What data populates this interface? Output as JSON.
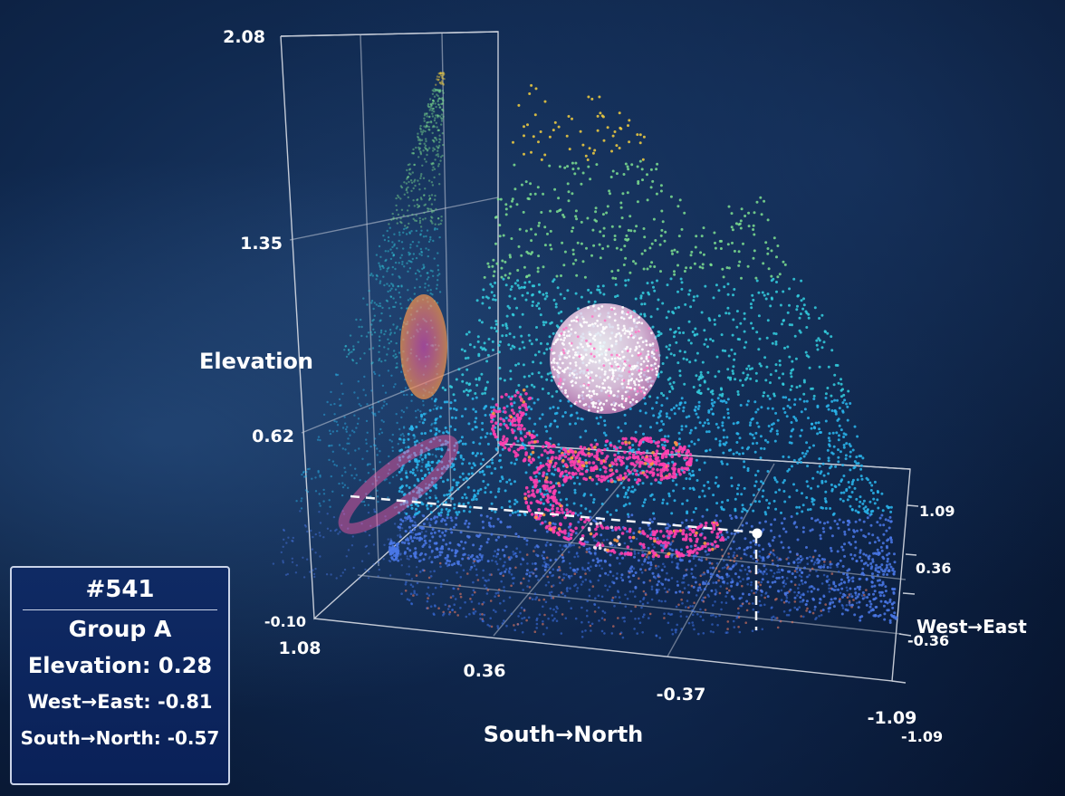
{
  "chart_data": {
    "type": "scatter3d",
    "axes": {
      "z": {
        "label": "Elevation",
        "ticks": [
          "2.08",
          "1.35",
          "0.62",
          "-0.10"
        ],
        "range": [
          -0.1,
          2.08
        ]
      },
      "y": {
        "label": "South→North",
        "ticks": [
          "1.08",
          "0.36",
          "-0.37",
          "-1.09"
        ],
        "range": [
          -1.09,
          1.08
        ]
      },
      "x": {
        "label": "West→East",
        "ticks": [
          "1.09",
          "0.36",
          "-0.36",
          "-1.09"
        ],
        "range": [
          -1.09,
          1.09
        ]
      }
    },
    "series": [
      {
        "role": "terrain point cloud",
        "colorscale": [
          "#4a78e8",
          "#2ab8f0",
          "#34d0e0",
          "#7ee090",
          "#f4d040"
        ]
      },
      {
        "role": "sphere",
        "color": "#ffffff"
      },
      {
        "role": "tube coil",
        "color": "#ff3fb0"
      }
    ],
    "highlighted_point": {
      "id": "#541",
      "group": "Group A",
      "elevation": 0.28,
      "west_east": -0.81,
      "south_north": -0.57
    },
    "grid": true,
    "projections": [
      "back wall",
      "floor"
    ]
  },
  "tooltip": {
    "id": "#541",
    "group": "Group A",
    "elevation": "Elevation: 0.28",
    "west_east": "West→East: -0.81",
    "south_north": "South→North: -0.57"
  }
}
